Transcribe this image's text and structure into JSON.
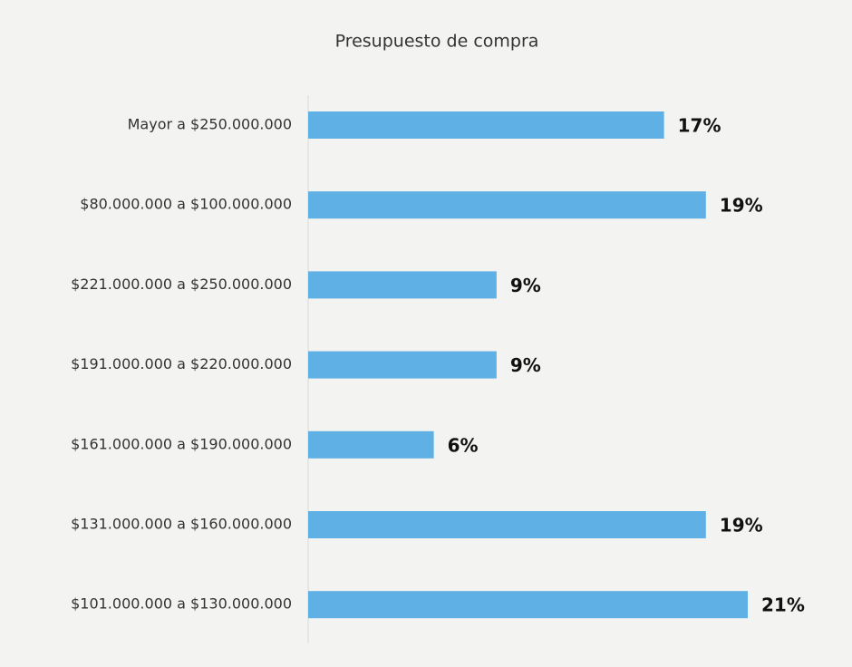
{
  "chart_data": {
    "type": "bar",
    "orientation": "horizontal",
    "title": "Presupuesto  de compra",
    "categories": [
      "Mayor a $250.000.000",
      "$80.000.000 a $100.000.000",
      "$221.000.000 a $250.000.000",
      "$191.000.000 a $220.000.000",
      "$161.000.000 a $190.000.000",
      "$131.000.000 a $160.000.000",
      "$101.000.000 a $130.000.000"
    ],
    "values": [
      17,
      19,
      9,
      9,
      6,
      19,
      21
    ],
    "value_labels": [
      "17%",
      "19%",
      "9%",
      "9%",
      "6%",
      "19%",
      "21%"
    ],
    "color": "#5eb0e5"
  }
}
